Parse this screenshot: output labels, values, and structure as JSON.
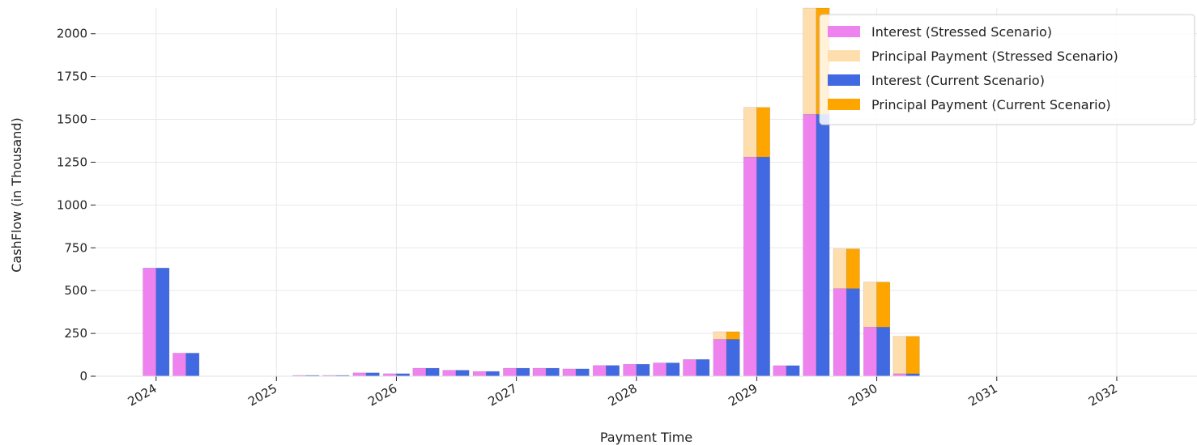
{
  "chart_data": {
    "type": "bar",
    "title": "",
    "xlabel": "Payment Time",
    "ylabel": "CashFlow (in Thousand)",
    "ylim": [
      0,
      2150
    ],
    "yticks": [
      0,
      250,
      500,
      750,
      1000,
      1250,
      1500,
      1750,
      2000
    ],
    "xticks": [
      "2024",
      "2025",
      "2026",
      "2027",
      "2028",
      "2029",
      "2030",
      "2031",
      "2032"
    ],
    "xlim": [
      "2023-07-01",
      "2032-09-01"
    ],
    "grid": true,
    "legend_position": "top-right",
    "periods": [
      "2024-01-01",
      "2024-04-01",
      "2025-04-01",
      "2025-07-01",
      "2025-10-01",
      "2026-01-01",
      "2026-04-01",
      "2026-07-01",
      "2026-10-01",
      "2027-01-01",
      "2027-04-01",
      "2027-07-01",
      "2027-10-01",
      "2028-01-01",
      "2028-04-01",
      "2028-07-01",
      "2028-10-01",
      "2029-01-01",
      "2029-04-01",
      "2029-07-01",
      "2029-10-01",
      "2030-01-01",
      "2030-04-01"
    ],
    "series": [
      {
        "name": "Interest (Stressed Scenario)",
        "color": "#EE82EE",
        "group": "stressed",
        "values": [
          632,
          135,
          5,
          5,
          20,
          15,
          47,
          35,
          28,
          47,
          47,
          43,
          63,
          70,
          78,
          98,
          215,
          1280,
          62,
          1530,
          512,
          287,
          15
        ]
      },
      {
        "name": "Principal Payment (Stressed Scenario)",
        "color": "#FFDEAD",
        "group": "stressed",
        "values": [
          0,
          0,
          0,
          0,
          0,
          0,
          0,
          0,
          0,
          0,
          0,
          0,
          0,
          0,
          0,
          0,
          45,
          290,
          0,
          620,
          232,
          263,
          218
        ]
      },
      {
        "name": "Interest (Current Scenario)",
        "color": "#4169E1",
        "group": "current",
        "values": [
          632,
          135,
          5,
          5,
          20,
          15,
          47,
          35,
          28,
          47,
          47,
          43,
          63,
          70,
          78,
          98,
          215,
          1280,
          62,
          1530,
          512,
          287,
          15
        ]
      },
      {
        "name": "Principal Payment (Current Scenario)",
        "color": "#FFA500",
        "group": "current",
        "values": [
          0,
          0,
          0,
          0,
          0,
          0,
          0,
          0,
          0,
          0,
          0,
          0,
          0,
          0,
          0,
          0,
          45,
          290,
          0,
          620,
          232,
          263,
          218
        ]
      }
    ]
  }
}
